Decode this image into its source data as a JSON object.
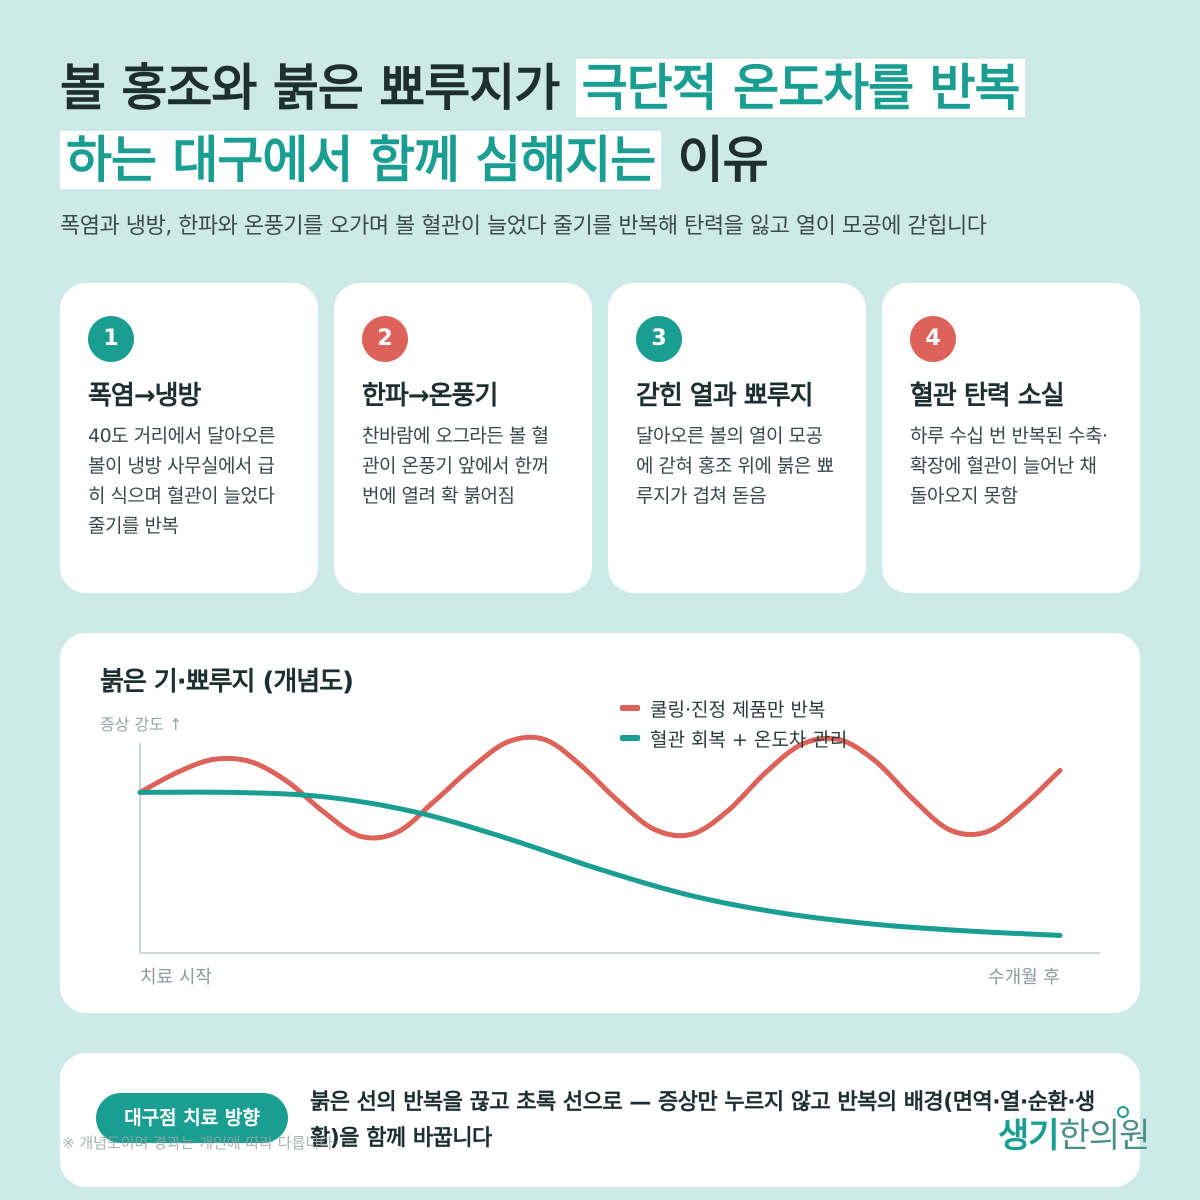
{
  "title": {
    "part1": "볼 홍조와 붉은 뾰루지가",
    "highlight1": "극단적 온도차를 반복",
    "highlight2": "하는 대구에서 함께 심해지는",
    "part2": "이유"
  },
  "subtitle": "폭염과 냉방, 한파와 온풍기를 오가며 볼 혈관이 늘었다 줄기를 반복해 탄력을 잃고 열이 모공에 갇힙니다",
  "cards": [
    {
      "num": "1",
      "title": "폭염→냉방",
      "body": "40도 거리에서 달아오른 볼이 냉방 사무실에서 급히 식으며 혈관이 늘었다 줄기를 반복",
      "color": "#1a9e92"
    },
    {
      "num": "2",
      "title": "한파→온풍기",
      "body": "찬바람에 오그라든 볼 혈관이 온풍기 앞에서 한꺼번에 열려 확 붉어짐",
      "color": "#dc625a"
    },
    {
      "num": "3",
      "title": "갇힌 열과 뾰루지",
      "body": "달아오른 볼의 열이 모공에 갇혀 홍조 위에 붉은 뾰루지가 겹쳐 돋음",
      "color": "#1a9e92"
    },
    {
      "num": "4",
      "title": "혈관 탄력 소실",
      "body": "하루 수십 번 반복된 수축·확장에 혈관이 늘어난 채 돌아오지 못함",
      "color": "#dc625a"
    }
  ],
  "chart_data": {
    "type": "line",
    "title": "붉은 기·뾰루지 (개념도)",
    "ylabel": "증상 강도 ↑",
    "x_start_label": "치료 시작",
    "x_end_label": "수개월 후",
    "grid": false,
    "legend_position": "top-right",
    "series": [
      {
        "name": "쿨링·진정 제품만 반복",
        "color": "#dc625a",
        "x": [
          0.0,
          0.04,
          0.08,
          0.12,
          0.16,
          0.2,
          0.24,
          0.28,
          0.32,
          0.36,
          0.4,
          0.44,
          0.48,
          0.52,
          0.56,
          0.6,
          0.64,
          0.68,
          0.72,
          0.76,
          0.8,
          0.84,
          0.88,
          0.92,
          0.96,
          1.0
        ],
        "values": [
          0.73,
          0.82,
          0.88,
          0.87,
          0.78,
          0.64,
          0.53,
          0.55,
          0.69,
          0.84,
          0.96,
          0.97,
          0.85,
          0.69,
          0.56,
          0.54,
          0.65,
          0.82,
          0.95,
          0.97,
          0.87,
          0.7,
          0.56,
          0.55,
          0.67,
          0.83
        ]
      },
      {
        "name": "혈관 회복 + 온도차 관리",
        "color": "#1a9e92",
        "x": [
          0.0,
          0.1,
          0.2,
          0.3,
          0.4,
          0.5,
          0.6,
          0.7,
          0.8,
          0.9,
          1.0
        ],
        "values": [
          0.73,
          0.73,
          0.71,
          0.64,
          0.52,
          0.38,
          0.26,
          0.18,
          0.13,
          0.1,
          0.08
        ]
      }
    ]
  },
  "bottom": {
    "pill": "대구점 치료 방향",
    "message": "붉은 선의 반복을 끊고 초록 선으로 — 증상만 누르지 않고 반복의 배경(면역·열·순환·생활)을 함께 바꿉니다",
    "note": "※ 개념도이며 경과는 개인에 따라 다릅니다"
  },
  "logo": {
    "part1": "생기",
    "part2": "한의원"
  }
}
